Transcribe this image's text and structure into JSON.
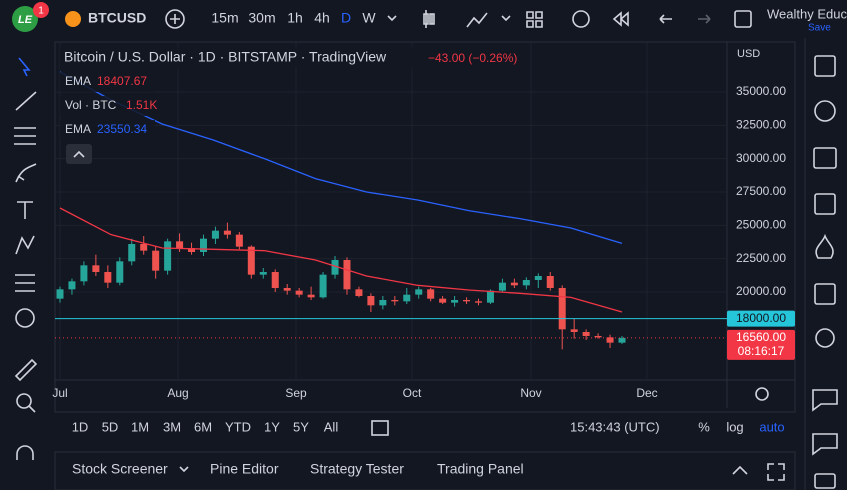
{
  "top_bar": {
    "badge": "1",
    "logo": "LE",
    "symbol": "BTCUSD",
    "intervals": [
      "15m",
      "30m",
      "1h",
      "4h",
      "D",
      "W"
    ],
    "account": "Wealthy Educ",
    "save": "Save"
  },
  "chart_data": {
    "type": "candlestick",
    "title": "Bitcoin / U.S. Dollar · 1D · BITSTAMP · TradingView",
    "change": "−43.00 (−0.26%)",
    "currency": "USD",
    "legend": [
      {
        "name": "EMA",
        "value": 18407.67,
        "color": "#f23645"
      },
      {
        "name": "Vol · BTC",
        "value": 1510,
        "value_label": "1.51K",
        "color": "#f23645"
      },
      {
        "name": "EMA",
        "value": 23550.34,
        "color": "#2962ff"
      }
    ],
    "ylim": [
      13400,
      38750
    ],
    "yticks": [
      {
        "value": 20000,
        "label": "20000.00"
      },
      {
        "value": 22500,
        "label": "22500.00"
      },
      {
        "value": 25000,
        "label": "25000.00"
      },
      {
        "value": 27500,
        "label": "27500.00"
      },
      {
        "value": 30000,
        "label": "30000.00"
      },
      {
        "value": 32500,
        "label": "32500.00"
      },
      {
        "value": 35000,
        "label": "35000.00"
      }
    ],
    "x_labels": [
      "Jul",
      "Aug",
      "Sep",
      "Oct",
      "Nov",
      "Dec"
    ],
    "up_color": "#26a69a",
    "down_color": "#ef5350",
    "candles": [
      [
        19500,
        20400,
        19200,
        20200
      ],
      [
        20200,
        21000,
        19800,
        20800
      ],
      [
        20800,
        22300,
        20500,
        22000
      ],
      [
        22000,
        22800,
        21200,
        21500
      ],
      [
        21500,
        22000,
        20300,
        20700
      ],
      [
        20700,
        22600,
        20500,
        22300
      ],
      [
        22300,
        24000,
        22000,
        23600
      ],
      [
        23600,
        24200,
        22800,
        23100
      ],
      [
        23100,
        23400,
        21000,
        21600
      ],
      [
        21600,
        24000,
        21300,
        23800
      ],
      [
        23800,
        24400,
        23000,
        23300
      ],
      [
        23300,
        23700,
        22800,
        23000
      ],
      [
        23000,
        24300,
        22700,
        24000
      ],
      [
        24000,
        24900,
        23600,
        24600
      ],
      [
        24600,
        25200,
        24000,
        24300
      ],
      [
        24300,
        24500,
        23200,
        23400
      ],
      [
        23400,
        23500,
        21000,
        21300
      ],
      [
        21300,
        21800,
        21000,
        21500
      ],
      [
        21500,
        21700,
        20000,
        20300
      ],
      [
        20300,
        20600,
        19800,
        20100
      ],
      [
        20100,
        20300,
        19600,
        19800
      ],
      [
        19800,
        20400,
        19400,
        19600
      ],
      [
        19600,
        21500,
        19500,
        21300
      ],
      [
        21300,
        22700,
        21000,
        22400
      ],
      [
        22400,
        22600,
        19800,
        20200
      ],
      [
        20200,
        20400,
        19600,
        19700
      ],
      [
        19700,
        19900,
        18500,
        19000
      ],
      [
        19000,
        19700,
        18700,
        19400
      ],
      [
        19400,
        19700,
        19000,
        19300
      ],
      [
        19300,
        20300,
        19100,
        19800
      ],
      [
        19800,
        20400,
        19500,
        20200
      ],
      [
        20200,
        20300,
        19300,
        19500
      ],
      [
        19500,
        19700,
        19100,
        19200
      ],
      [
        19200,
        19700,
        18900,
        19400
      ],
      [
        19400,
        19600,
        19100,
        19300
      ],
      [
        19300,
        19500,
        19000,
        19200
      ],
      [
        19200,
        20200,
        19100,
        20100
      ],
      [
        20100,
        21000,
        20000,
        20700
      ],
      [
        20700,
        21000,
        20300,
        20500
      ],
      [
        20500,
        21100,
        20200,
        20900
      ],
      [
        20900,
        21400,
        20300,
        21200
      ],
      [
        21200,
        21500,
        20100,
        20300
      ],
      [
        20300,
        20500,
        15700,
        17200
      ],
      [
        17200,
        18000,
        16500,
        17000
      ],
      [
        17000,
        17200,
        16400,
        16700
      ],
      [
        16700,
        16900,
        16500,
        16600
      ],
      [
        16600,
        16800,
        15800,
        16200
      ],
      [
        16200,
        16700,
        16100,
        16560
      ]
    ],
    "series": [
      {
        "name": "EMA",
        "color": "#f23645",
        "values": [
          26300,
          24300,
          23300,
          23200,
          23100,
          22400,
          21200,
          20500,
          20150,
          19900,
          19600,
          18500
        ]
      },
      {
        "name": "EMA",
        "color": "#2962ff",
        "values": [
          36500,
          34400,
          32600,
          31400,
          30000,
          28500,
          27500,
          26900,
          26100,
          25500,
          24800,
          23650
        ]
      }
    ],
    "price_lines": [
      {
        "value": 18000,
        "label": "18000.00",
        "color": "#26c6da"
      },
      {
        "value": 16560,
        "label": "16560.00",
        "countdown": "08:16:17",
        "color": "#f23645"
      }
    ]
  },
  "range_bar": {
    "ranges": [
      "1D",
      "5D",
      "1M",
      "3M",
      "6M",
      "YTD",
      "1Y",
      "5Y",
      "All"
    ],
    "clock": "15:43:43 (UTC)",
    "options": [
      "%",
      "log",
      "auto"
    ]
  },
  "bottom_panel": {
    "tabs": [
      "Stock Screener",
      "Pine Editor",
      "Strategy Tester",
      "Trading Panel"
    ]
  }
}
